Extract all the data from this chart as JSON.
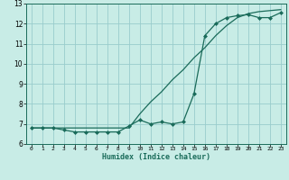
{
  "xlabel": "Humidex (Indice chaleur)",
  "ylabel": "",
  "background_color": "#c8ece6",
  "grid_color": "#99cccc",
  "line_color": "#1a6b5a",
  "xlim": [
    -0.5,
    23.5
  ],
  "ylim": [
    6,
    13
  ],
  "xticks": [
    0,
    1,
    2,
    3,
    4,
    5,
    6,
    7,
    8,
    9,
    10,
    11,
    12,
    13,
    14,
    15,
    16,
    17,
    18,
    19,
    20,
    21,
    22,
    23
  ],
  "yticks": [
    6,
    7,
    8,
    9,
    10,
    11,
    12,
    13
  ],
  "line1_x": [
    0,
    1,
    2,
    3,
    4,
    5,
    6,
    7,
    8,
    9,
    10,
    11,
    12,
    13,
    14,
    15,
    16,
    17,
    18,
    19,
    20,
    21,
    22,
    23
  ],
  "line1_y": [
    6.8,
    6.8,
    6.8,
    6.7,
    6.6,
    6.6,
    6.6,
    6.6,
    6.6,
    6.9,
    7.2,
    7.0,
    7.1,
    7.0,
    7.1,
    8.5,
    11.4,
    12.0,
    12.3,
    12.4,
    12.45,
    12.3,
    12.3,
    12.55
  ],
  "line2_x": [
    0,
    1,
    2,
    3,
    4,
    5,
    6,
    7,
    8,
    9,
    10,
    11,
    12,
    13,
    14,
    15,
    16,
    17,
    18,
    19,
    20,
    21,
    22,
    23
  ],
  "line2_y": [
    6.8,
    6.8,
    6.8,
    6.8,
    6.8,
    6.8,
    6.8,
    6.8,
    6.8,
    6.8,
    7.5,
    8.1,
    8.6,
    9.2,
    9.7,
    10.3,
    10.8,
    11.4,
    11.9,
    12.3,
    12.5,
    12.6,
    12.65,
    12.7
  ]
}
